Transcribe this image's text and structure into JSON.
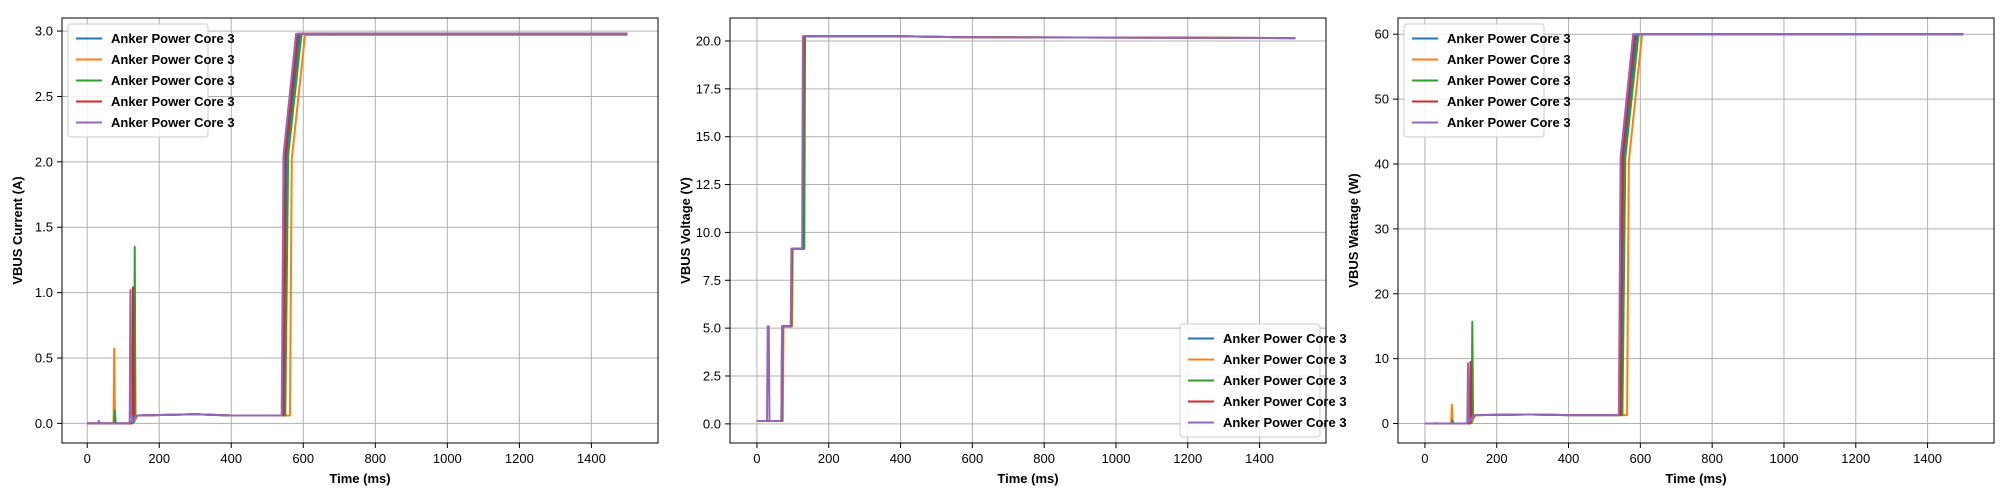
{
  "chart_data": [
    {
      "type": "line",
      "xlabel": "Time (ms)",
      "ylabel": "VBUS Current (A)",
      "xlim": [
        -70,
        1585
      ],
      "ylim": [
        -0.15,
        3.1
      ],
      "xticks": [
        0,
        200,
        400,
        600,
        800,
        1000,
        1200,
        1400
      ],
      "yticks": [
        0.0,
        0.5,
        1.0,
        1.5,
        2.0,
        2.5,
        3.0
      ],
      "ytick_decimals": 1,
      "grid": true,
      "legend_position": "top-left",
      "series": [
        {
          "name": "Anker Power Core 3",
          "color": "#1f77b4",
          "x": [
            0,
            110,
            120,
            125,
            128,
            130,
            135,
            140,
            300,
            400,
            545,
            553,
            590,
            1500
          ],
          "y": [
            0.0,
            0.0,
            0.01,
            0.01,
            0.02,
            0.02,
            0.06,
            0.06,
            0.07,
            0.06,
            0.06,
            2.02,
            2.98,
            2.98
          ]
        },
        {
          "name": "Anker Power Core 3",
          "color": "#ff7f0e",
          "x": [
            0,
            73,
            75,
            77,
            80,
            110,
            130,
            140,
            300,
            400,
            563,
            568,
            605,
            1500
          ],
          "y": [
            0.0,
            0.0,
            0.57,
            0.05,
            0.0,
            0.0,
            0.01,
            0.06,
            0.07,
            0.06,
            0.06,
            2.02,
            2.97,
            2.97
          ]
        },
        {
          "name": "Anker Power Core 3",
          "color": "#2ca02c",
          "x": [
            0,
            75,
            77,
            79,
            120,
            130,
            132,
            134,
            140,
            300,
            400,
            550,
            558,
            595,
            1500
          ],
          "y": [
            0.0,
            0.0,
            0.1,
            0.0,
            0.0,
            0.01,
            1.35,
            0.05,
            0.06,
            0.07,
            0.06,
            0.06,
            2.05,
            2.98,
            2.98
          ]
        },
        {
          "name": "Anker Power Core 3",
          "color": "#d62728",
          "x": [
            0,
            120,
            125,
            127,
            129,
            135,
            140,
            300,
            400,
            545,
            550,
            585,
            1500
          ],
          "y": [
            0.0,
            0.0,
            0.0,
            1.04,
            0.05,
            0.06,
            0.06,
            0.07,
            0.06,
            0.06,
            2.05,
            2.98,
            2.98
          ]
        },
        {
          "name": "Anker Power Core 3",
          "color": "#9467bd",
          "x": [
            0,
            30,
            32,
            34,
            118,
            120,
            122,
            124,
            126,
            135,
            140,
            300,
            400,
            540,
            545,
            580,
            1500
          ],
          "y": [
            0.0,
            0.0,
            0.02,
            0.0,
            0.0,
            1.02,
            0.05,
            0.06,
            0.01,
            0.06,
            0.06,
            0.07,
            0.06,
            0.06,
            2.05,
            2.98,
            2.98
          ]
        }
      ]
    },
    {
      "type": "line",
      "xlabel": "Time (ms)",
      "ylabel": "VBUS Voltage (V)",
      "xlim": [
        -75,
        1585
      ],
      "ylim": [
        -1.0,
        21.2
      ],
      "xticks": [
        0,
        200,
        400,
        600,
        800,
        1000,
        1200,
        1400
      ],
      "yticks": [
        0.0,
        2.5,
        5.0,
        7.5,
        10.0,
        12.5,
        15.0,
        17.5,
        20.0
      ],
      "ytick_decimals": 1,
      "grid": true,
      "legend_position": "bottom-right",
      "series": [
        {
          "name": "Anker Power Core 3",
          "color": "#1f77b4",
          "x": [
            0,
            68,
            70,
            95,
            97,
            128,
            130,
            400,
            550,
            1500
          ],
          "y": [
            0.15,
            0.15,
            5.1,
            5.1,
            9.15,
            9.15,
            20.25,
            20.25,
            20.2,
            20.15
          ]
        },
        {
          "name": "Anker Power Core 3",
          "color": "#ff7f0e",
          "x": [
            0,
            72,
            74,
            98,
            100,
            130,
            132,
            400,
            550,
            1500
          ],
          "y": [
            0.15,
            0.15,
            5.1,
            5.1,
            9.15,
            9.15,
            20.25,
            20.25,
            20.2,
            20.15
          ]
        },
        {
          "name": "Anker Power Core 3",
          "color": "#2ca02c",
          "x": [
            0,
            70,
            72,
            96,
            98,
            132,
            134,
            400,
            550,
            1500
          ],
          "y": [
            0.15,
            0.15,
            5.1,
            5.1,
            9.15,
            9.15,
            20.25,
            20.25,
            20.2,
            20.15
          ]
        },
        {
          "name": "Anker Power Core 3",
          "color": "#d62728",
          "x": [
            0,
            69,
            71,
            95,
            97,
            128,
            130,
            400,
            550,
            1500
          ],
          "y": [
            0.15,
            0.15,
            5.1,
            5.1,
            9.15,
            9.15,
            20.25,
            20.25,
            20.2,
            20.15
          ]
        },
        {
          "name": "Anker Power Core 3",
          "color": "#9467bd",
          "x": [
            0,
            28,
            30,
            33,
            35,
            68,
            70,
            94,
            96,
            126,
            128,
            400,
            550,
            1500
          ],
          "y": [
            0.15,
            0.15,
            5.1,
            5.1,
            0.15,
            0.15,
            5.1,
            5.1,
            9.15,
            9.15,
            20.25,
            20.25,
            20.2,
            20.15
          ]
        }
      ]
    },
    {
      "type": "line",
      "xlabel": "Time (ms)",
      "ylabel": "VBUS Wattage (W)",
      "xlim": [
        -75,
        1585
      ],
      "ylim": [
        -3.0,
        62.5
      ],
      "xticks": [
        0,
        200,
        400,
        600,
        800,
        1000,
        1200,
        1400
      ],
      "yticks": [
        0,
        10,
        20,
        30,
        40,
        50,
        60
      ],
      "ytick_decimals": 0,
      "grid": true,
      "legend_position": "top-left",
      "series": [
        {
          "name": "Anker Power Core 3",
          "color": "#1f77b4",
          "x": [
            0,
            110,
            120,
            128,
            130,
            135,
            140,
            300,
            400,
            545,
            553,
            590,
            1500
          ],
          "y": [
            0.0,
            0.0,
            0.05,
            0.2,
            0.2,
            1.2,
            1.3,
            1.4,
            1.3,
            1.3,
            40.5,
            60.0,
            60.0
          ]
        },
        {
          "name": "Anker Power Core 3",
          "color": "#ff7f0e",
          "x": [
            0,
            73,
            75,
            77,
            80,
            110,
            130,
            140,
            300,
            400,
            563,
            568,
            605,
            1500
          ],
          "y": [
            0.0,
            0.0,
            2.9,
            0.3,
            0.0,
            0.0,
            0.1,
            1.3,
            1.4,
            1.3,
            1.3,
            40.5,
            60.0,
            60.0
          ]
        },
        {
          "name": "Anker Power Core 3",
          "color": "#2ca02c",
          "x": [
            0,
            75,
            77,
            79,
            120,
            130,
            132,
            134,
            140,
            300,
            400,
            550,
            558,
            595,
            1500
          ],
          "y": [
            0.0,
            0.0,
            0.5,
            0.0,
            0.0,
            0.1,
            15.7,
            0.9,
            1.3,
            1.4,
            1.3,
            1.3,
            41.0,
            60.0,
            60.0
          ]
        },
        {
          "name": "Anker Power Core 3",
          "color": "#d62728",
          "x": [
            0,
            120,
            125,
            127,
            129,
            135,
            140,
            300,
            400,
            545,
            550,
            585,
            1500
          ],
          "y": [
            0.0,
            0.0,
            0.0,
            9.5,
            0.8,
            1.2,
            1.3,
            1.4,
            1.3,
            1.3,
            41.0,
            60.0,
            60.0
          ]
        },
        {
          "name": "Anker Power Core 3",
          "color": "#9467bd",
          "x": [
            0,
            30,
            32,
            34,
            118,
            120,
            122,
            124,
            135,
            140,
            300,
            400,
            540,
            545,
            580,
            1500
          ],
          "y": [
            0.0,
            0.0,
            0.1,
            0.0,
            0.0,
            9.3,
            0.8,
            0.3,
            1.2,
            1.3,
            1.4,
            1.3,
            1.3,
            41.0,
            60.0,
            60.0
          ]
        }
      ]
    }
  ]
}
